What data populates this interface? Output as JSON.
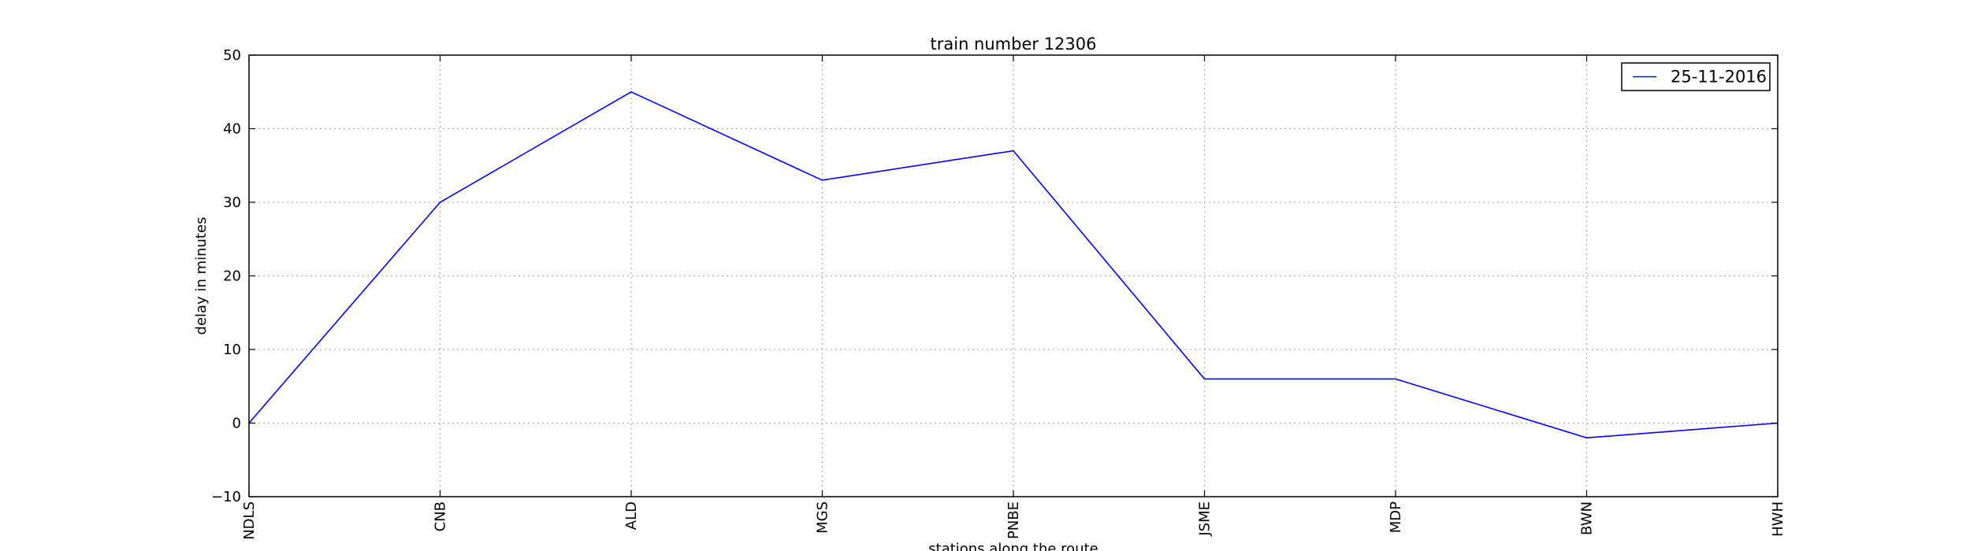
{
  "chart_data": {
    "type": "line",
    "title": "train number 12306",
    "xlabel": "stations along the route",
    "ylabel": "delay in minutes",
    "categories": [
      "NDLS",
      "CNB",
      "ALD",
      "MGS",
      "PNBE",
      "JSME",
      "MDP",
      "BWN",
      "HWH"
    ],
    "series": [
      {
        "name": "25-11-2016",
        "color": "#0000ff",
        "values": [
          0,
          30,
          45,
          33,
          37,
          6,
          6,
          -2,
          0
        ]
      }
    ],
    "ylim": [
      -10,
      50
    ],
    "yticks": [
      -10,
      0,
      10,
      20,
      30,
      40,
      50
    ],
    "grid": true,
    "legend": "top-right"
  }
}
